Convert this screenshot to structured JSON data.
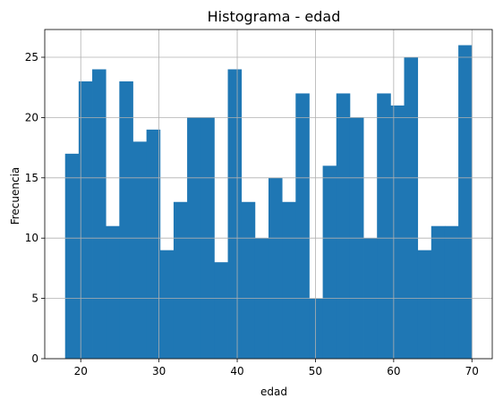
{
  "chart_data": {
    "type": "bar",
    "title": "Histograma - edad",
    "xlabel": "edad",
    "ylabel": "Frecuencia",
    "xlim": [
      15.4,
      72.6
    ],
    "ylim": [
      0,
      27.3
    ],
    "bin_start": 18,
    "bin_width": 1.7333,
    "values": [
      17,
      23,
      24,
      11,
      23,
      18,
      19,
      9,
      13,
      20,
      20,
      8,
      24,
      13,
      10,
      15,
      13,
      22,
      5,
      16,
      22,
      20,
      10,
      22,
      21,
      25,
      9,
      11,
      11,
      26
    ],
    "x_ticks": [
      20,
      30,
      40,
      50,
      60,
      70
    ],
    "y_ticks": [
      0,
      5,
      10,
      15,
      20,
      25
    ],
    "grid": true,
    "bar_color": "#1f77b4",
    "grid_color": "#b0b0b0"
  }
}
